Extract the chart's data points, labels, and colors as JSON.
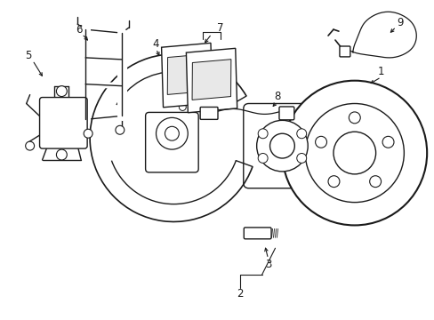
{
  "bg_color": "#ffffff",
  "line_color": "#1a1a1a",
  "fig_width": 4.89,
  "fig_height": 3.6,
  "dpi": 100,
  "xlim": [
    0,
    489
  ],
  "ylim": [
    0,
    360
  ]
}
